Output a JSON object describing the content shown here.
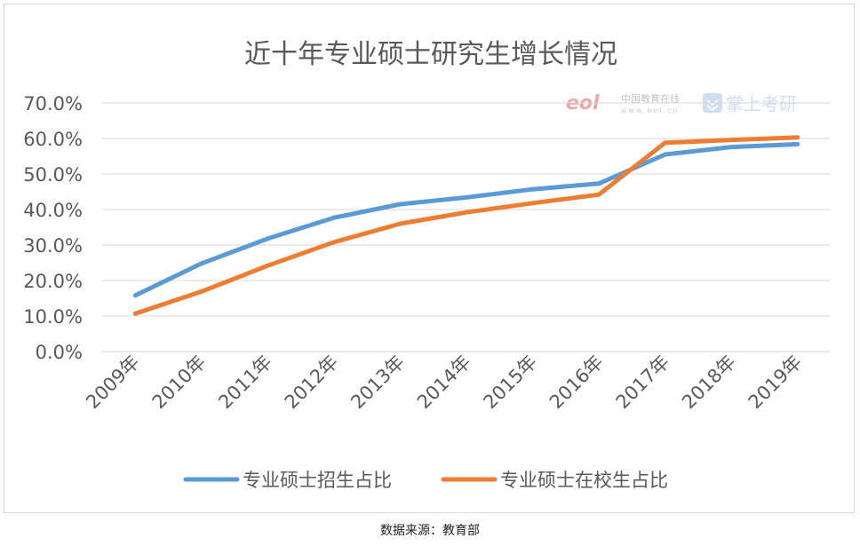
{
  "chart_data": {
    "type": "line",
    "title": "近十年专业硕士研究生增长情况",
    "categories": [
      "2009年",
      "2010年",
      "2011年",
      "2012年",
      "2013年",
      "2014年",
      "2015年",
      "2016年",
      "2017年",
      "2018年",
      "2019年"
    ],
    "series": [
      {
        "name": "专业硕士招生占比",
        "color": "#5b9bd5",
        "values": [
          0.158,
          0.248,
          0.318,
          0.377,
          0.415,
          0.434,
          0.457,
          0.473,
          0.555,
          0.576,
          0.584
        ]
      },
      {
        "name": "专业硕士在校生占比",
        "color": "#ed7d31",
        "values": [
          0.107,
          0.169,
          0.242,
          0.308,
          0.36,
          0.392,
          0.418,
          0.442,
          0.588,
          0.596,
          0.603
        ]
      }
    ],
    "yticks": [
      "0.0%",
      "10.0%",
      "20.0%",
      "30.0%",
      "40.0%",
      "50.0%",
      "60.0%",
      "70.0%"
    ],
    "ylim": [
      0,
      0.7
    ],
    "grid": true,
    "legend": "bottom"
  },
  "watermark": {
    "eol_logo": "eol",
    "eol_name": "中国教育在线",
    "eol_url": "www.eol.cn",
    "brand": "掌上考研"
  },
  "source": "数据来源：教育部"
}
